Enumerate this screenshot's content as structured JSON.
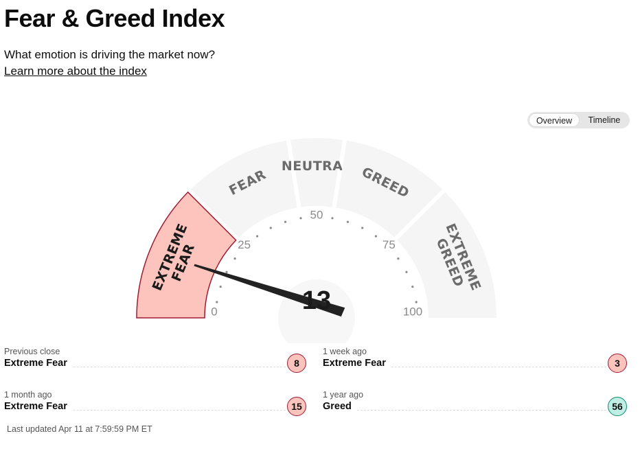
{
  "header": {
    "title": "Fear & Greed Index",
    "subtitle": "What emotion is driving the market now?",
    "learn_link": "Learn more about the index"
  },
  "view_toggle": {
    "options": [
      "Overview",
      "Timeline"
    ],
    "selected": "Overview"
  },
  "gauge": {
    "value": 13,
    "value_label": "13",
    "scale_min": 0,
    "scale_max": 100,
    "ticks": [
      "0",
      "25",
      "50",
      "75",
      "100"
    ],
    "segments": [
      {
        "label": "EXTREME FEAR",
        "line1": "EXTREME",
        "line2": "FEAR",
        "from": 0,
        "to": 25,
        "active": true
      },
      {
        "label": "FEAR",
        "from": 25,
        "to": 45,
        "active": false
      },
      {
        "label": "NEUTRAL",
        "from": 45,
        "to": 55,
        "active": false
      },
      {
        "label": "GREED",
        "from": 55,
        "to": 75,
        "active": false
      },
      {
        "label": "EXTREME GREED",
        "line1": "EXTREME",
        "line2": "GREED",
        "from": 75,
        "to": 100,
        "active": false
      }
    ],
    "colors": {
      "active_fill": "#fdc3bd",
      "active_stroke": "#9e1a32",
      "inactive_fill": "#f5f5f5",
      "needle": "#222222",
      "label": "#6b6b6b",
      "active_label": "#1a1a1a"
    }
  },
  "stats": [
    {
      "label": "Previous close",
      "rating": "Extreme Fear",
      "value": "8",
      "tone": "fear"
    },
    {
      "label": "1 week ago",
      "rating": "Extreme Fear",
      "value": "3",
      "tone": "fear"
    },
    {
      "label": "1 month ago",
      "rating": "Extreme Fear",
      "value": "15",
      "tone": "fear"
    },
    {
      "label": "1 year ago",
      "rating": "Greed",
      "value": "56",
      "tone": "greed"
    }
  ],
  "last_updated": "Last updated Apr 11 at 7:59:59 PM ET"
}
